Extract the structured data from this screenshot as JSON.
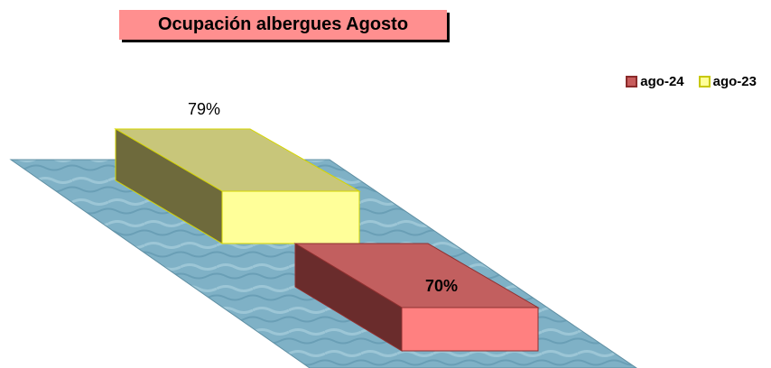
{
  "chart_data": {
    "type": "bar",
    "title": "Ocupación albergues Agosto",
    "categories": [
      ""
    ],
    "series": [
      {
        "name": "ago-23",
        "values": [
          79
        ],
        "label": "79%",
        "color": "#ffff99"
      },
      {
        "name": "ago-24",
        "values": [
          70
        ],
        "label": "70%",
        "color": "#ff8080"
      }
    ],
    "legend": "top-right",
    "floor_color": "#7fb1c6"
  }
}
